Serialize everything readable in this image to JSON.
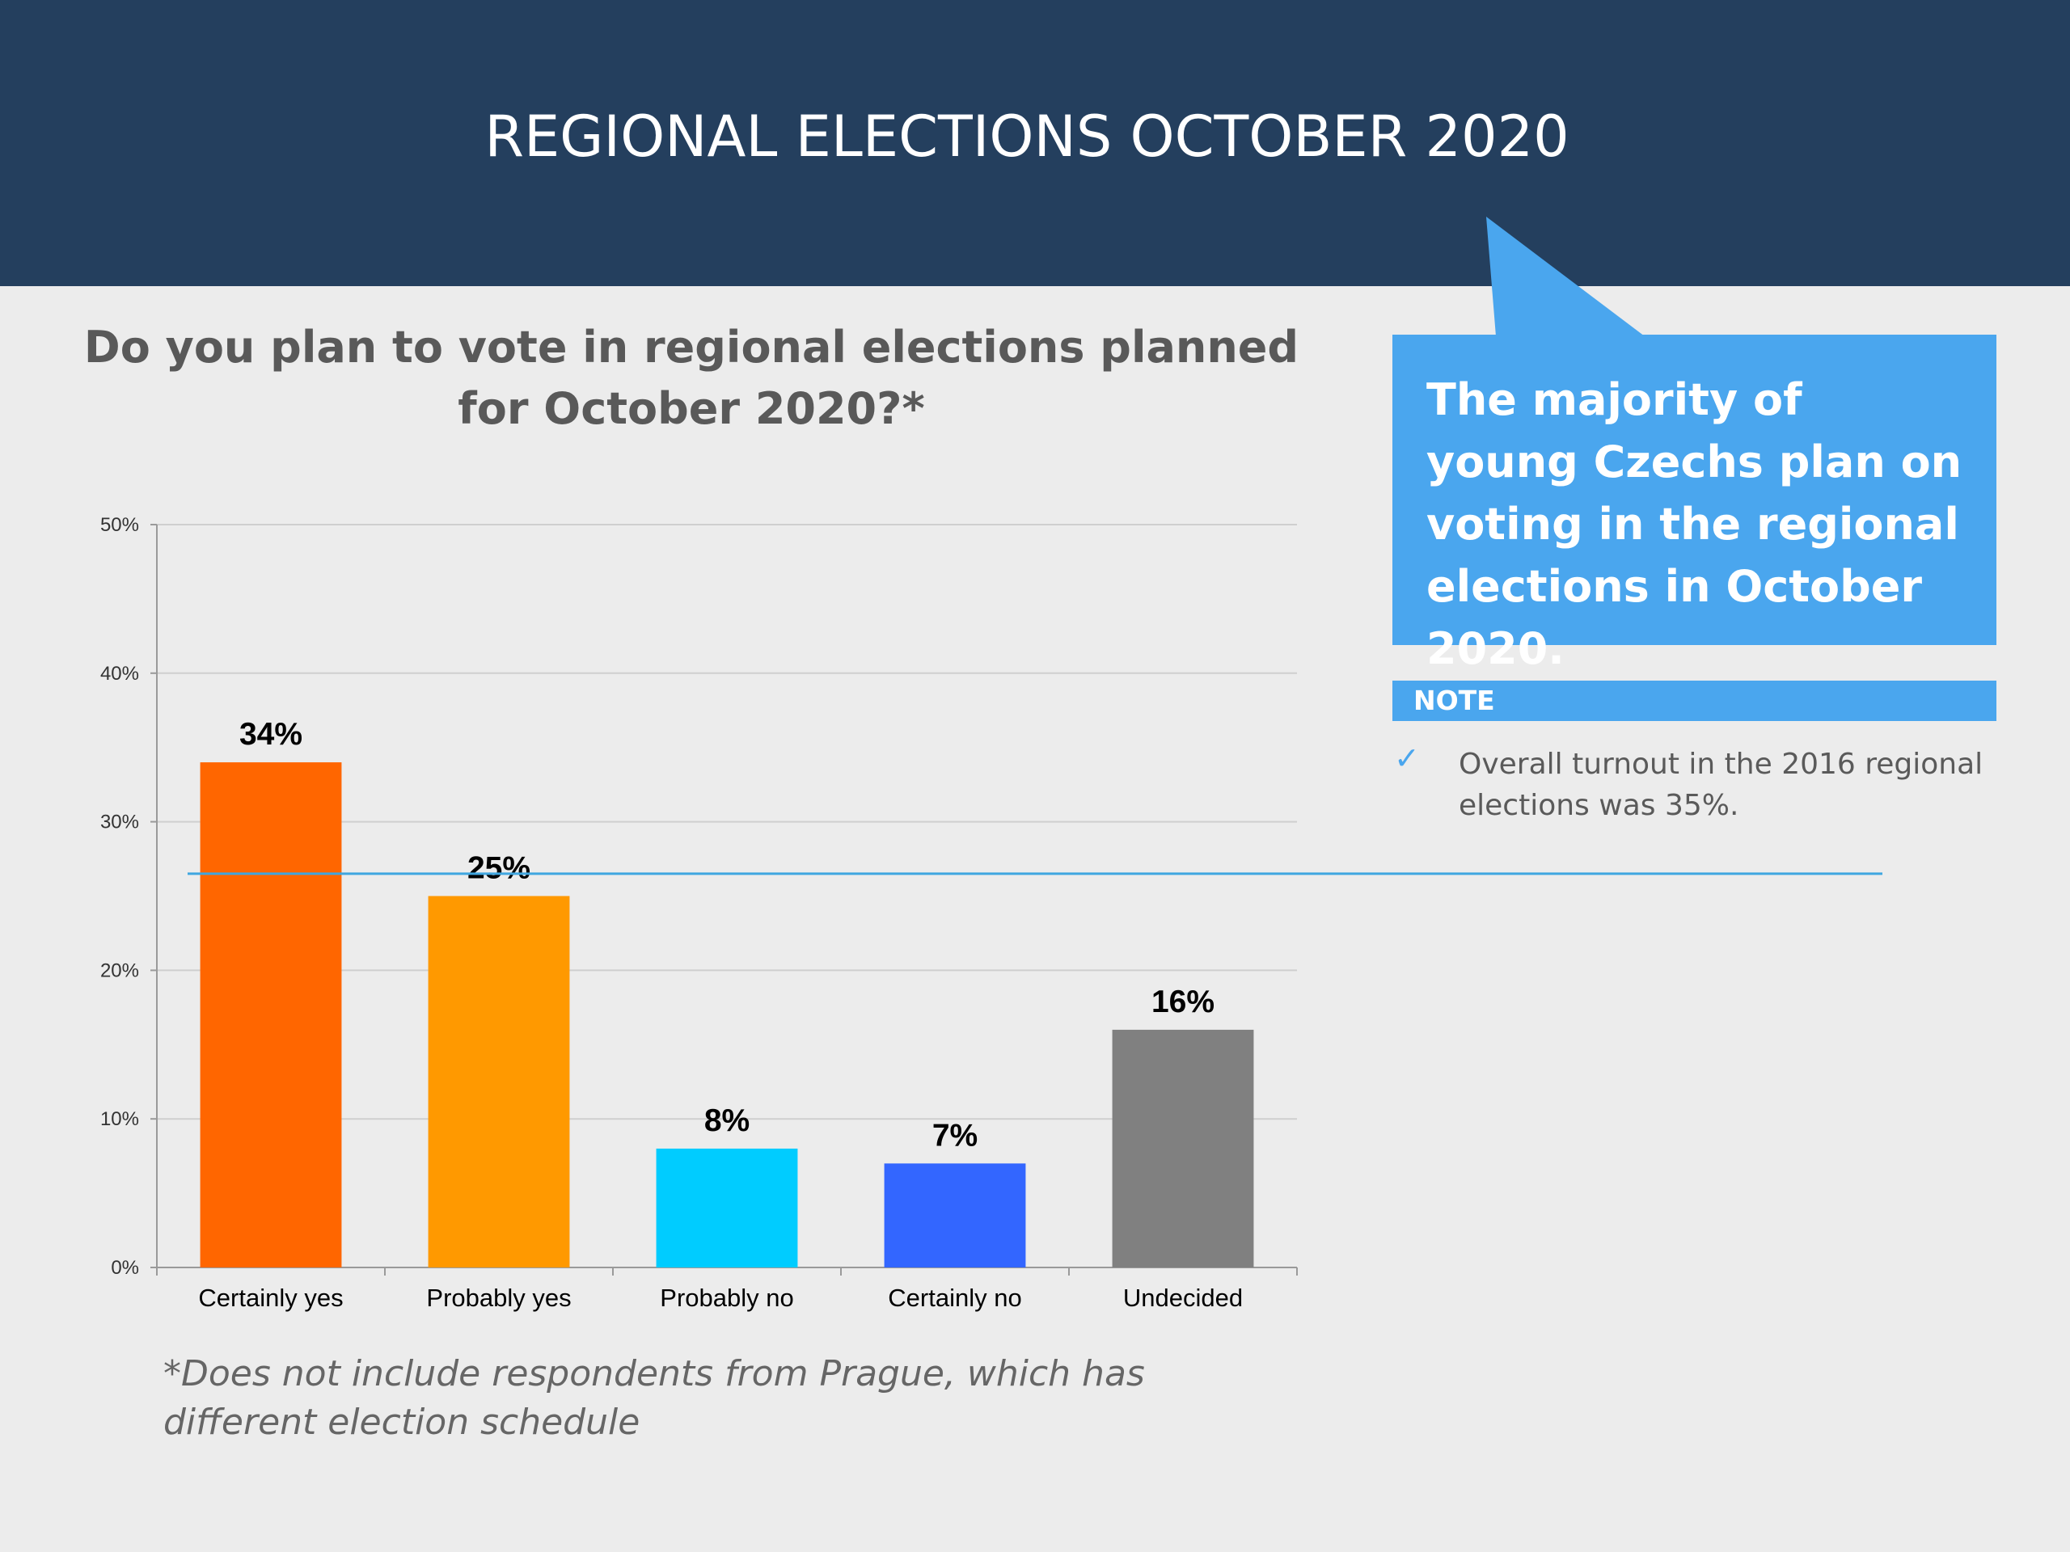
{
  "header": {
    "title": "REGIONAL ELECTIONS OCTOBER 2020"
  },
  "callout": {
    "text": "The majority of young Czechs plan on voting in the regional elections in October 2020."
  },
  "note": {
    "title": "NOTE",
    "check_icon": "check-icon",
    "text": "Overall turnout in the 2016 regional elections was 35%."
  },
  "footnote": "*Does not include respondents from Prague, which has different election schedule",
  "colors": {
    "header_bg": "#243f5e",
    "callout_bg": "#4aa6ee",
    "reference_line": "#3fa6e0"
  },
  "chart_data": {
    "type": "bar",
    "title": "Do you plan to vote in regional elections planned for October 2020?*",
    "categories": [
      "Certainly yes",
      "Probably yes",
      "Probably no",
      "Certainly no",
      "Undecided"
    ],
    "values": [
      34,
      25,
      8,
      7,
      16
    ],
    "value_labels": [
      "34%",
      "25%",
      "8%",
      "7%",
      "16%"
    ],
    "bar_colors": [
      "#ff6600",
      "#ff9900",
      "#00ccff",
      "#3366ff",
      "#808080"
    ],
    "y_ticks": [
      0,
      10,
      20,
      30,
      40,
      50
    ],
    "y_tick_labels": [
      "0%",
      "10%",
      "20%",
      "30%",
      "40%",
      "50%"
    ],
    "ylim": [
      0,
      50
    ],
    "xlabel": "",
    "ylabel": "",
    "grid": true,
    "reference_line": {
      "value": 26.5
    }
  }
}
